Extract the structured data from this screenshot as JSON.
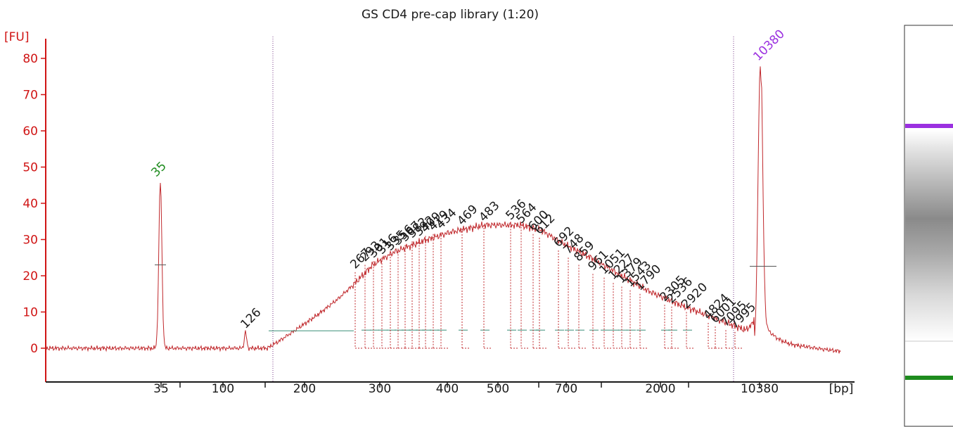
{
  "chart_data": {
    "type": "line",
    "title": "GS CD4 pre-cap library (1:20)",
    "ylabel": "[FU]",
    "xlabel": "[bp]",
    "ylim": [
      0,
      80
    ],
    "yticks": [
      0,
      10,
      20,
      30,
      40,
      50,
      60,
      70,
      80
    ],
    "xticks": [
      "35",
      "100",
      "200",
      "300",
      "400",
      "500",
      "700",
      "2000",
      "10380"
    ],
    "colors": {
      "axis": "#d01515",
      "trace": "#c0282c",
      "baseline": "#3a8f78",
      "lower_marker": "#1e8c1e",
      "upper_marker": "#9b30e0",
      "region_bound": "#7a3b8a"
    },
    "markers": {
      "lower": {
        "label": "35",
        "size_bp": 35,
        "height": 46,
        "color": "#1e8c1e"
      },
      "upper": {
        "label": "10380",
        "size_bp": 10380,
        "height": 78,
        "color": "#9b30e0"
      }
    },
    "peaks": [
      {
        "label": "126",
        "height": 4.5
      },
      {
        "label": "267",
        "height": 21
      },
      {
        "label": "293",
        "height": 23
      },
      {
        "label": "301",
        "height": 24
      },
      {
        "label": "316",
        "height": 25
      },
      {
        "label": "335",
        "height": 26
      },
      {
        "label": "356",
        "height": 27.5
      },
      {
        "label": "367",
        "height": 28.5
      },
      {
        "label": "382",
        "height": 29.5
      },
      {
        "label": "392",
        "height": 30
      },
      {
        "label": "409",
        "height": 31
      },
      {
        "label": "419",
        "height": 31.5
      },
      {
        "label": "434",
        "height": 32
      },
      {
        "label": "469",
        "height": 33
      },
      {
        "label": "483",
        "height": 34
      },
      {
        "label": "536",
        "height": 34.5
      },
      {
        "label": "564",
        "height": 33.5
      },
      {
        "label": "600",
        "height": 31.5
      },
      {
        "label": "612",
        "height": 30.5
      },
      {
        "label": "692",
        "height": 27
      },
      {
        "label": "748",
        "height": 25
      },
      {
        "label": "859",
        "height": 23
      },
      {
        "label": "961",
        "height": 20.5
      },
      {
        "label": "1051",
        "height": 19.5
      },
      {
        "label": "1227",
        "height": 18
      },
      {
        "label": "1379",
        "height": 17
      },
      {
        "label": "1543",
        "height": 16
      },
      {
        "label": "1790",
        "height": 15
      },
      {
        "label": "2305",
        "height": 12
      },
      {
        "label": "2536",
        "height": 11.5
      },
      {
        "label": "2920",
        "height": 10
      },
      {
        "label": "4824",
        "height": 7
      },
      {
        "label": "6001",
        "height": 6
      },
      {
        "label": "7095",
        "height": 5
      },
      {
        "label": "7995",
        "height": 4.5
      }
    ],
    "gel": {
      "lower_band_color": "#1e8c1e",
      "upper_band_color": "#9b30e0"
    }
  }
}
